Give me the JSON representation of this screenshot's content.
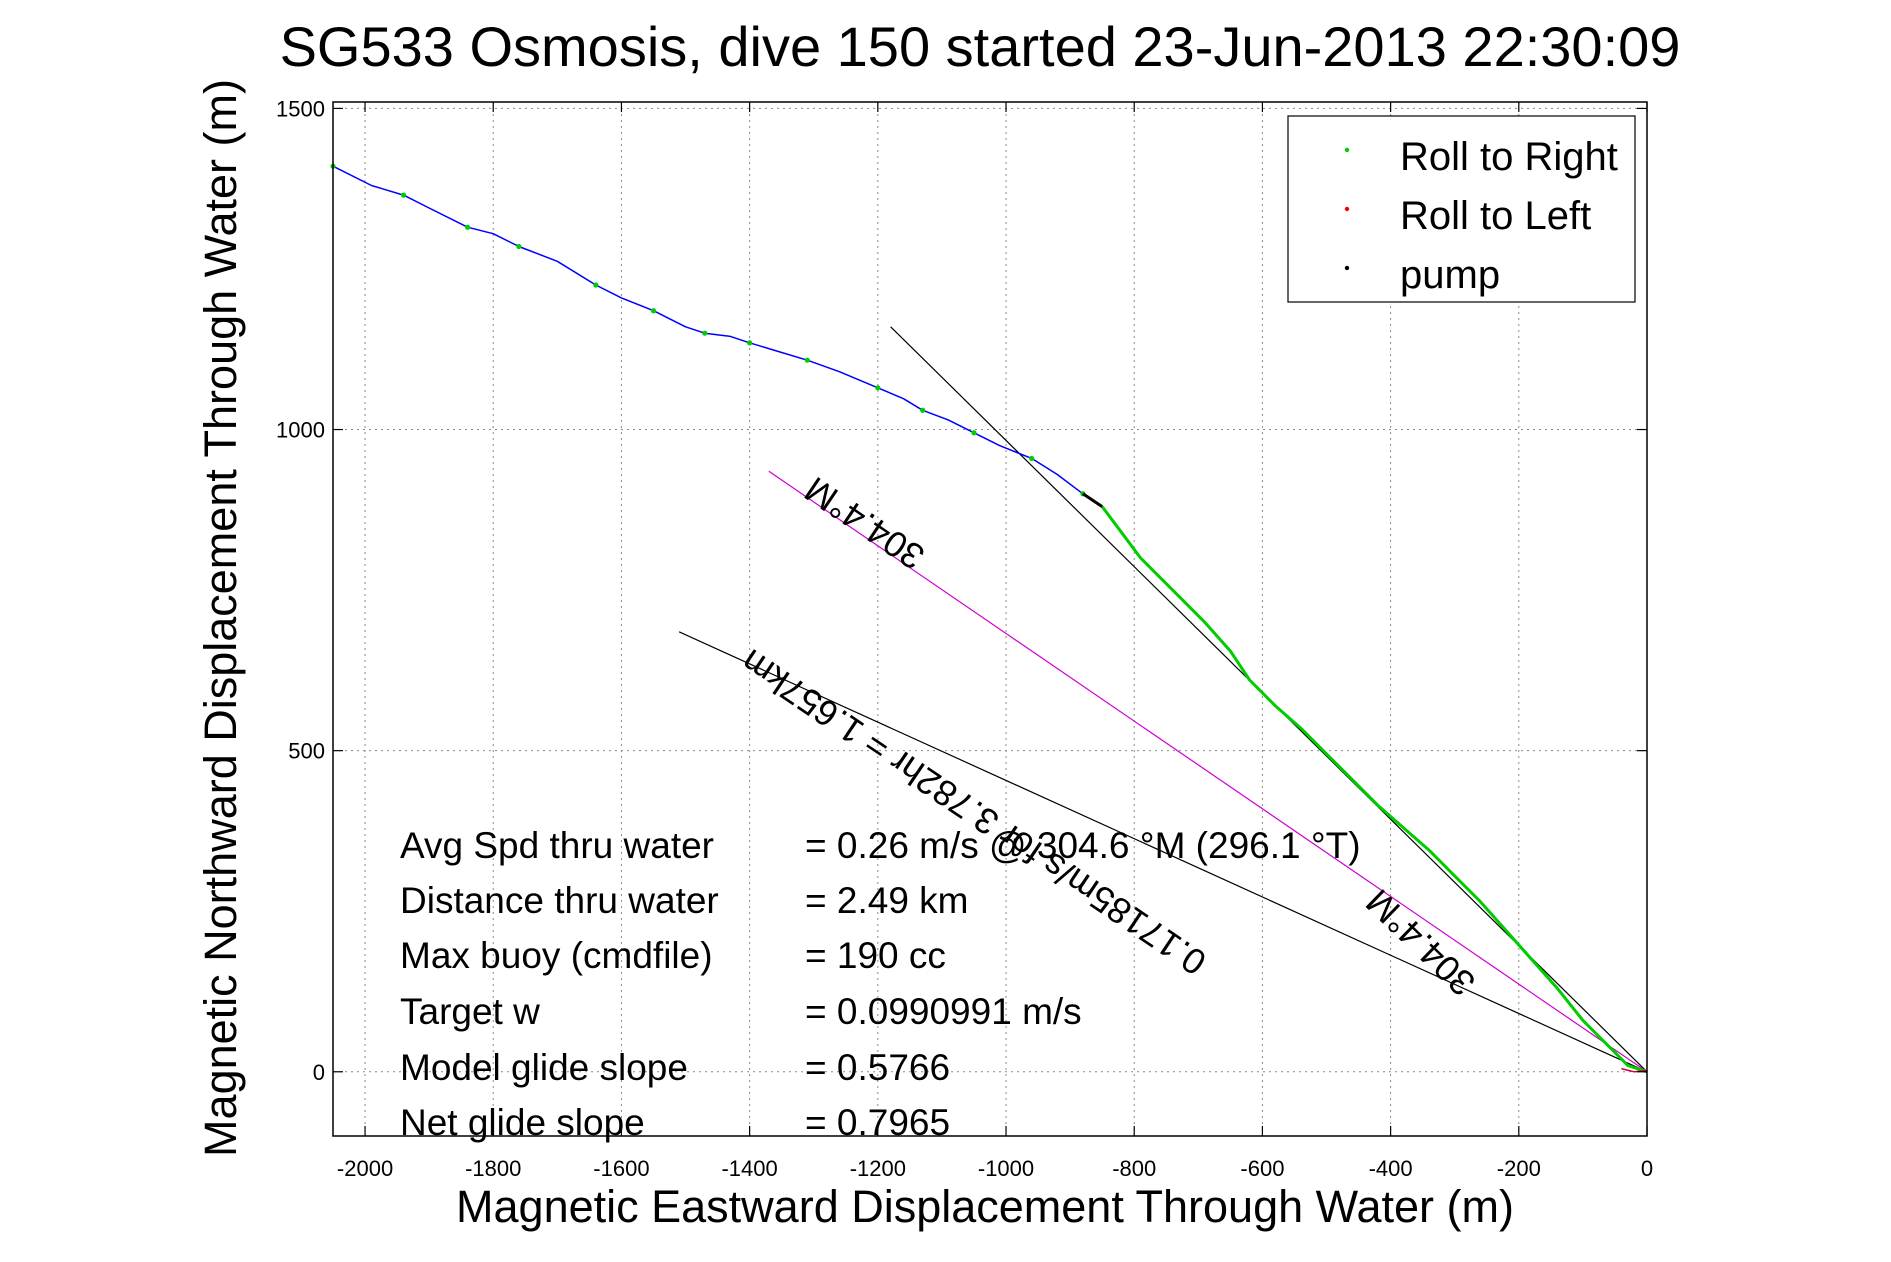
{
  "chart_data": {
    "type": "line",
    "title": "SG533 Osmosis, dive 150 started 23-Jun-2013 22:30:09",
    "xlabel": "Magnetic Eastward Displacement Through Water (m)",
    "ylabel": "Magnetic Northward Displacement Through Water (m)",
    "xlim": [
      -2050,
      0
    ],
    "ylim": [
      -100,
      1510
    ],
    "xticks": [
      -2000,
      -1800,
      -1600,
      -1400,
      -1200,
      -1000,
      -800,
      -600,
      -400,
      -200,
      0
    ],
    "yticks": [
      0,
      500,
      1000,
      1500
    ],
    "grid": true,
    "legend_position": "top-right",
    "legend": [
      {
        "label": "Roll to Right",
        "color": "#00cc00"
      },
      {
        "label": "Roll to Left",
        "color": "#ff0000"
      },
      {
        "label": "pump",
        "color": "#000000"
      }
    ],
    "series": [
      {
        "color": "#0000ff",
        "x": [
          -2050,
          -1990,
          -1940,
          -1900,
          -1840,
          -1800,
          -1760,
          -1700,
          -1640,
          -1600,
          -1550,
          -1500,
          -1470,
          -1430,
          -1400,
          -1350,
          -1310,
          -1260,
          -1200,
          -1160,
          -1130,
          -1090,
          -1050,
          -1010,
          -960,
          -920,
          -880,
          -850
        ],
        "y": [
          1410,
          1380,
          1365,
          1345,
          1315,
          1305,
          1285,
          1262,
          1225,
          1205,
          1185,
          1160,
          1150,
          1145,
          1135,
          1120,
          1108,
          1090,
          1065,
          1048,
          1030,
          1015,
          995,
          975,
          955,
          930,
          900,
          880
        ]
      },
      {
        "color": "#00cc00",
        "x": [
          -850,
          -820,
          -790,
          -760,
          -720,
          -690,
          -650,
          -620,
          -580,
          -540,
          -500,
          -460,
          -420,
          -380,
          -340,
          -300,
          -260,
          -220,
          -180,
          -140,
          -100,
          -60,
          -30,
          0
        ],
        "y": [
          880,
          840,
          800,
          770,
          730,
          700,
          655,
          610,
          570,
          535,
          495,
          455,
          415,
          380,
          345,
          305,
          265,
          220,
          175,
          130,
          80,
          40,
          10,
          0
        ]
      },
      {
        "color": "#cc0033",
        "x": [
          -40,
          -20,
          0
        ],
        "y": [
          5,
          0,
          2
        ]
      }
    ],
    "reference_lines": [
      {
        "color": "#000000",
        "x": [
          -1180,
          0
        ],
        "y": [
          1160,
          0
        ]
      },
      {
        "color": "#000000",
        "x": [
          -1510,
          0
        ],
        "y": [
          685,
          0
        ]
      },
      {
        "color": "#d000d0",
        "x": [
          -1370,
          0
        ],
        "y": [
          935,
          0
        ]
      }
    ],
    "annotations": [
      {
        "text": "304.4°M",
        "x": -1210,
        "y": 870,
        "angle": 214
      },
      {
        "text": "0.17185m/s for 3.782hr = 1.657km",
        "x": -1040,
        "y": 420,
        "angle": 214
      },
      {
        "text": "304.4°M",
        "x": -340,
        "y": 215,
        "angle": 224
      }
    ],
    "stats": [
      {
        "label": "Avg Spd thru water",
        "value": "=  0.26 m/s @ 304.6 °M (296.1 °T)"
      },
      {
        "label": "Distance thru water",
        "value": "=  2.49 km"
      },
      {
        "label": "Max buoy (cmdfile)",
        "value": "= 190 cc"
      },
      {
        "label": "Target w",
        "value": "= 0.0990991 m/s"
      },
      {
        "label": "Model glide slope",
        "value": "= 0.5766"
      },
      {
        "label": "Net glide slope",
        "value": "= 0.7965"
      }
    ]
  }
}
